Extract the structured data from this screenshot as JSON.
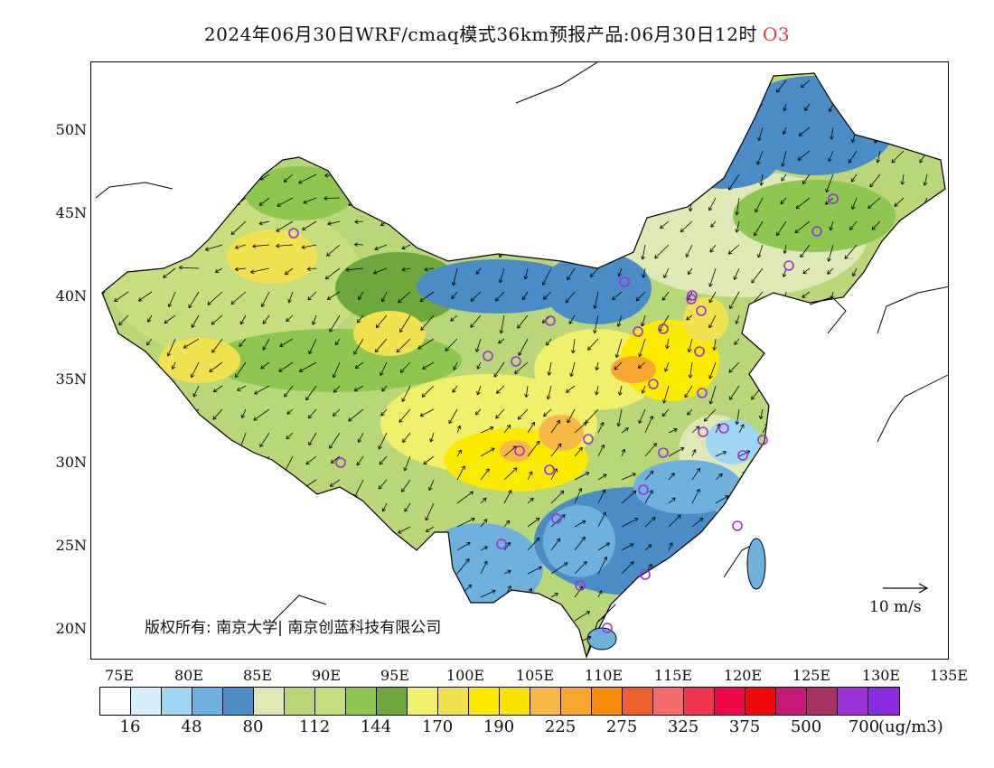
{
  "title": {
    "main": "2024年06月30日WRF/cmaq模式36km预报产品:06月30日12时",
    "species": "O3",
    "species_color": "#e23b3b"
  },
  "map": {
    "lat_labels": [
      "50N",
      "45N",
      "40N",
      "35N",
      "30N",
      "25N",
      "20N"
    ],
    "lon_labels": [
      "75E",
      "80E",
      "85E",
      "90E",
      "95E",
      "100E",
      "105E",
      "110E",
      "115E",
      "120E",
      "125E",
      "130E",
      "135E"
    ],
    "copyright": "版权所有: 南京大学| 南京创蓝科技有限公司",
    "wind_scale_label": "10 m/s",
    "station_color": "#9b30d9"
  },
  "colorbar": {
    "colors": [
      "#ffffff",
      "#d6eefa",
      "#9fd6f3",
      "#6eb0de",
      "#4a8cc6",
      "#dfe9b5",
      "#b9d778",
      "#c6de7e",
      "#8fc64f",
      "#6ea73c",
      "#f1f06a",
      "#f2e24f",
      "#fcea00",
      "#f9e100",
      "#f7b845",
      "#f7a72d",
      "#f78a0a",
      "#ee6230",
      "#f56a6a",
      "#f0364f",
      "#ef0846",
      "#ee0a0a",
      "#c8197a",
      "#a63361",
      "#9b30d9",
      "#8a2be2"
    ],
    "labels": [
      "16",
      "48",
      "80",
      "112",
      "144",
      "170",
      "190",
      "225",
      "275",
      "325",
      "375",
      "500",
      "700"
    ],
    "unit": "(ug/m3)"
  }
}
